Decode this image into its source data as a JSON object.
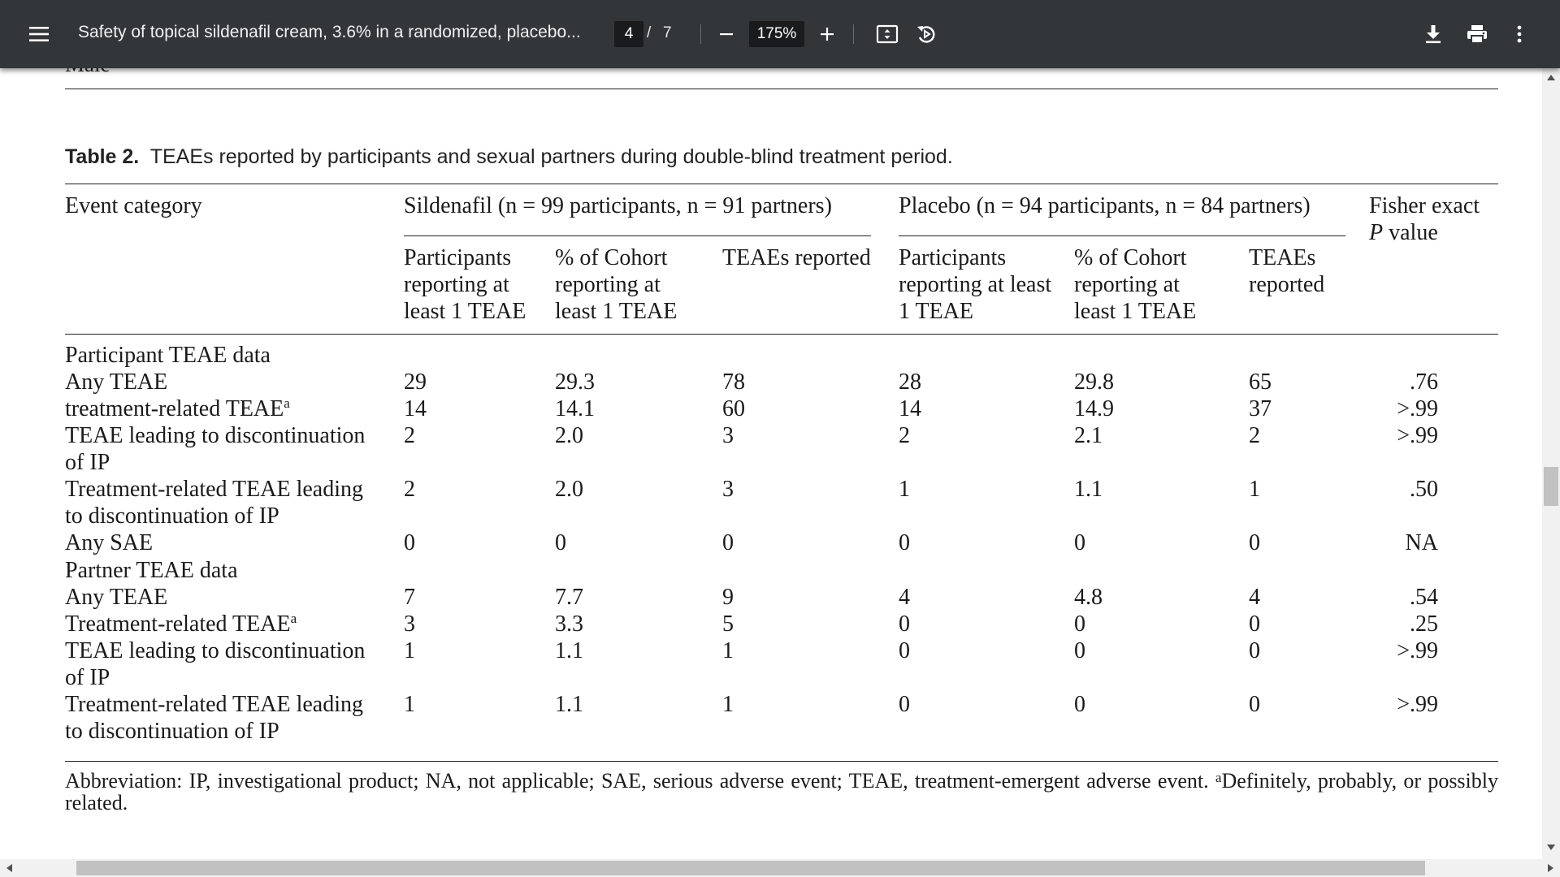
{
  "toolbar": {
    "title": "Safety of topical sildenafil cream, 3.6% in a randomized, placebo...",
    "current_page": "4",
    "page_separator": "/",
    "total_pages": "7",
    "zoom": "175%"
  },
  "residual": {
    "text": [
      "Male",
      "",
      "",
      "",
      ""
    ]
  },
  "table": {
    "caption_label": "Table 2.",
    "caption_text": "TEAEs reported by participants and sexual partners during double-blind treatment period.",
    "col_event": "Event category",
    "group_sildenafil": "Sildenafil (n = 99 participants, n = 91 partners)",
    "group_placebo": "Placebo (n = 94 participants, n = 84 partners)",
    "col_fisher": "Fisher exact",
    "col_fisher_p": "P",
    "col_fisher_value": "value",
    "sub_headers": {
      "s_participants": "Participants reporting at least 1 TEAE",
      "s_percent": "% of Cohort reporting at least 1 TEAE",
      "s_teaes": "TEAEs reported",
      "p_participants": "Participants reporting at least 1 TEAE",
      "p_percent": "% of Cohort reporting at least 1 TEAE",
      "p_teaes": "TEAEs reported"
    },
    "section_participant": "Participant TEAE data",
    "section_partner": "Partner TEAE data",
    "rows": [
      {
        "label": "Any TEAE",
        "sup": "",
        "s_n": "29",
        "s_pct": "29.3",
        "s_teae": "78",
        "p_n": "28",
        "p_pct": "29.8",
        "p_teae": "65",
        "p_value": ".76"
      },
      {
        "label": "treatment-related TEAE",
        "sup": "a",
        "s_n": "14",
        "s_pct": "14.1",
        "s_teae": "60",
        "p_n": "14",
        "p_pct": "14.9",
        "p_teae": "37",
        "p_value": ">.99"
      },
      {
        "label": "TEAE leading to discontinuation",
        "label2": "of IP",
        "sup": "",
        "s_n": "2",
        "s_pct": "2.0",
        "s_teae": "3",
        "p_n": "2",
        "p_pct": "2.1",
        "p_teae": "2",
        "p_value": ">.99"
      },
      {
        "label": "Treatment-related TEAE leading",
        "label2": "to discontinuation of IP",
        "sup": "",
        "s_n": "2",
        "s_pct": "2.0",
        "s_teae": "3",
        "p_n": "1",
        "p_pct": "1.1",
        "p_teae": "1",
        "p_value": ".50"
      },
      {
        "label": "Any SAE",
        "sup": "",
        "s_n": "0",
        "s_pct": "0",
        "s_teae": "0",
        "p_n": "0",
        "p_pct": "0",
        "p_teae": "0",
        "p_value": "NA"
      },
      {
        "label": "Any TEAE",
        "sup": "",
        "s_n": "7",
        "s_pct": "7.7",
        "s_teae": "9",
        "p_n": "4",
        "p_pct": "4.8",
        "p_teae": "4",
        "p_value": ".54"
      },
      {
        "label": "Treatment-related TEAE",
        "sup": "a",
        "s_n": "3",
        "s_pct": "3.3",
        "s_teae": "5",
        "p_n": "0",
        "p_pct": "0",
        "p_teae": "0",
        "p_value": ".25"
      },
      {
        "label": "TEAE leading to discontinuation",
        "label2": "of IP",
        "sup": "",
        "s_n": "1",
        "s_pct": "1.1",
        "s_teae": "1",
        "p_n": "0",
        "p_pct": "0",
        "p_teae": "0",
        "p_value": ">.99"
      },
      {
        "label": "Treatment-related TEAE leading",
        "label2": "to discontinuation of IP",
        "sup": "",
        "s_n": "1",
        "s_pct": "1.1",
        "s_teae": "1",
        "p_n": "0",
        "p_pct": "0",
        "p_teae": "0",
        "p_value": ">.99"
      }
    ],
    "footnote": "Abbreviation: IP, investigational product; NA, not applicable; SAE, serious adverse event; TEAE, treatment-emergent adverse event.",
    "footnote_sup": "a",
    "footnote_tail": "Definitely, probably, or possibly related."
  },
  "icons": {
    "menu": "hamburger-menu-icon",
    "zoom_out": "minus-icon",
    "zoom_in": "plus-icon",
    "fit": "fit-to-page-icon",
    "rotate": "rotate-icon",
    "download": "download-icon",
    "print": "print-icon",
    "more": "more-vertical-icon"
  },
  "colors": {
    "toolbar_bg": "#323639",
    "input_bg": "#191b1c",
    "text": "#1a1a1a"
  }
}
